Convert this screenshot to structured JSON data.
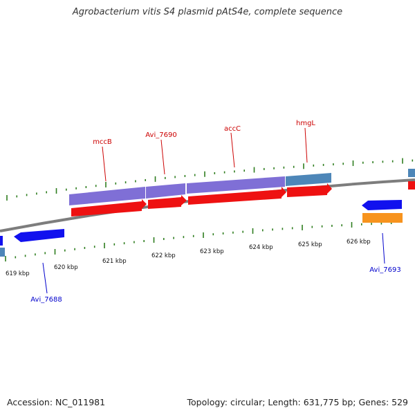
{
  "title": "Agrobacterium vitis S4 plasmid pAtS4e, complete sequence",
  "footer": {
    "accession": "Accession: NC_011981",
    "summary": "Topology: circular; Length: 631,775 bp; Genes: 529"
  },
  "colors": {
    "backbone": "#8a8a8a",
    "tick": "#2e7d1e",
    "ruler_text": "#111111",
    "forward_label": "#cc0000",
    "reverse_label": "#0000cc",
    "cds_red": "#ee1111",
    "gene_purple": "#7f6fd6",
    "gene_steel": "#4d86b8",
    "gene_blue": "#1111ee",
    "gene_orange": "#f7931e"
  },
  "ruler": [
    {
      "label": "619 kbp"
    },
    {
      "label": "620 kbp"
    },
    {
      "label": "621 kbp"
    },
    {
      "label": "622 kbp"
    },
    {
      "label": "623 kbp"
    },
    {
      "label": "624 kbp"
    },
    {
      "label": "625 kbp"
    },
    {
      "label": "626 kbp"
    }
  ],
  "gene_labels": {
    "forward": [
      "mccB",
      "Avi_7690",
      "accC",
      "hmgL"
    ],
    "reverse": [
      "Avi_7688",
      "Avi_7693"
    ]
  }
}
